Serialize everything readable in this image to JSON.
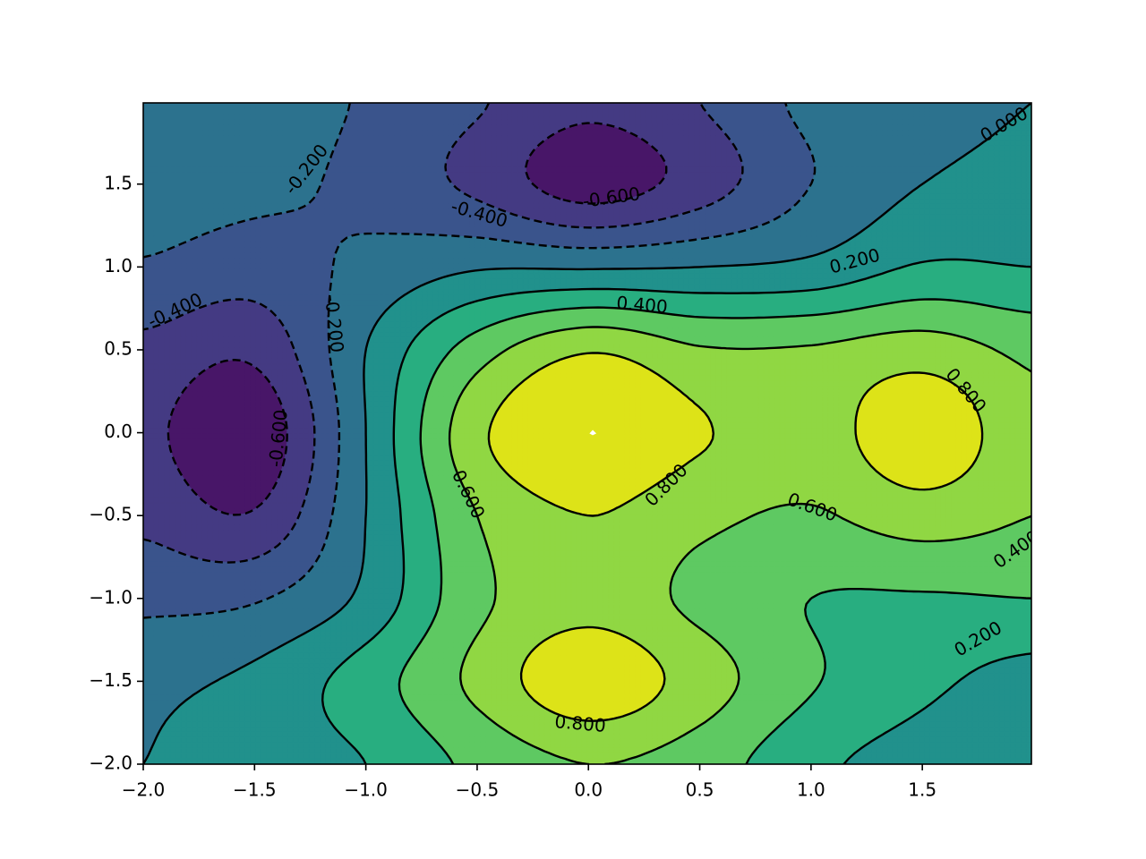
{
  "chart_data": {
    "type": "contour",
    "x": [
      -2,
      -1.5,
      -1,
      -0.5,
      0,
      0.5,
      1,
      1.5,
      2
    ],
    "y": [
      -2,
      -1.5,
      -1,
      -0.5,
      0,
      0.5,
      1,
      1.5,
      2
    ],
    "z": [
      [
        0.0,
        0.1,
        0.2,
        0.45,
        0.6,
        0.5,
        0.25,
        0.12,
        0.08
      ],
      [
        -0.05,
        0.05,
        0.3,
        0.65,
        0.95,
        0.7,
        0.42,
        0.25,
        0.12
      ],
      [
        -0.25,
        -0.22,
        0.05,
        0.55,
        0.72,
        0.55,
        0.4,
        0.38,
        0.4
      ],
      [
        -0.45,
        -0.58,
        0.0,
        0.6,
        0.8,
        0.65,
        0.58,
        0.7,
        0.6
      ],
      [
        -0.55,
        -0.75,
        0.0,
        0.75,
        1.0,
        0.82,
        0.7,
        0.95,
        0.65
      ],
      [
        -0.45,
        -0.55,
        0.0,
        0.5,
        0.78,
        0.62,
        0.62,
        0.7,
        0.55
      ],
      [
        -0.22,
        -0.3,
        -0.15,
        -0.02,
        -0.02,
        0.0,
        0.05,
        0.22,
        0.2
      ],
      [
        -0.1,
        -0.15,
        -0.25,
        -0.45,
        -0.7,
        -0.5,
        -0.2,
        0.0,
        0.05
      ],
      [
        -0.1,
        -0.1,
        -0.22,
        -0.38,
        -0.55,
        -0.4,
        -0.15,
        -0.05,
        0.0
      ]
    ],
    "fill_levels": [
      -0.8,
      -0.6,
      -0.4,
      -0.2,
      0,
      0.2,
      0.4,
      0.6,
      0.8,
      1.0
    ],
    "fill_colors": [
      "#481668",
      "#443a83",
      "#3a548c",
      "#2c728e",
      "#21918c",
      "#28ae80",
      "#5ec962",
      "#90d743",
      "#dde318"
    ],
    "contour_levels": [
      {
        "value": -0.6,
        "label": "-0.600"
      },
      {
        "value": -0.4,
        "label": "-0.400"
      },
      {
        "value": -0.2,
        "label": "-0.200"
      },
      {
        "value": 0,
        "label": "0.000"
      },
      {
        "value": 0.2,
        "label": "0.200"
      },
      {
        "value": 0.4,
        "label": "0.400"
      },
      {
        "value": 0.6,
        "label": "0.600"
      },
      {
        "value": 0.8,
        "label": "0.800"
      }
    ],
    "line_color": "#000000",
    "xlim": [
      -2,
      1.99
    ],
    "ylim": [
      -2,
      1.99
    ],
    "xticks": [
      {
        "value": -2,
        "label": "−2.0"
      },
      {
        "value": -1.5,
        "label": "−1.5"
      },
      {
        "value": -1,
        "label": "−1.0"
      },
      {
        "value": -0.5,
        "label": "−0.5"
      },
      {
        "value": 0,
        "label": "0.0"
      },
      0.5,
      {
        "value": 1,
        "label": "1.0"
      },
      1.5
    ],
    "yticks": [
      {
        "value": -2,
        "label": "−2.0"
      },
      {
        "value": -1.5,
        "label": "−1.5"
      },
      {
        "value": -1,
        "label": "−1.0"
      },
      {
        "value": -0.5,
        "label": "−0.5"
      },
      {
        "value": 0,
        "label": "0.0"
      },
      0.5,
      {
        "value": 1,
        "label": "1.0"
      },
      1.5
    ]
  }
}
